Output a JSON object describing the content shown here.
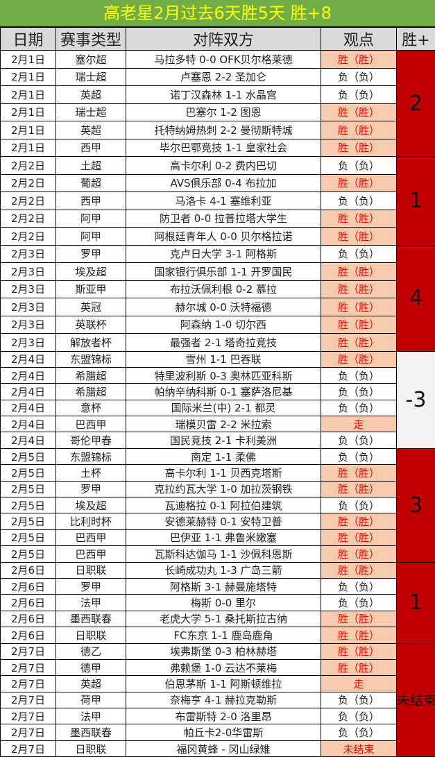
{
  "title": "高老星2月过去6天胜5天  胜+8",
  "headers": [
    "日期",
    "赛事类型",
    "对阵双方",
    "观点",
    "胜+"
  ],
  "colors": {
    "title_bg": "#70ad47",
    "title_text": "#ffff00",
    "header_bg": "#d9d9d9",
    "win_bg": "#f8cbad",
    "win_text": "#ff0000",
    "side_bg": "#c00000",
    "side_neg_bg": "#f2f2f2"
  },
  "groups": [
    {
      "score": "2",
      "rows": [
        {
          "date": "2月1日",
          "league": "塞尔超",
          "match": "马拉多特 0-0 OFK贝尔格莱德",
          "pick": "胜（胜）",
          "hit": true
        },
        {
          "date": "2月1日",
          "league": "瑞士超",
          "match": "卢塞恩 2-2 圣加仑",
          "pick": "负（负）",
          "hit": false
        },
        {
          "date": "2月1日",
          "league": "英超",
          "match": "诺丁汉森林 1-1 水晶宫",
          "pick": "负（负）",
          "hit": false
        },
        {
          "date": "2月1日",
          "league": "瑞士超",
          "match": "巴塞尔 1-2 图恩",
          "pick": "胜（胜）",
          "hit": true
        },
        {
          "date": "2月1日",
          "league": "英超",
          "match": "托特纳姆热刺 2-2 曼彻斯特城",
          "pick": "胜（胜）",
          "hit": true
        },
        {
          "date": "2月1日",
          "league": "西甲",
          "match": "毕尔巴鄂竞技 1-1 皇家社会",
          "pick": "胜（胜）",
          "hit": true
        }
      ]
    },
    {
      "score": "1",
      "rows": [
        {
          "date": "2月2日",
          "league": "土超",
          "match": "高卡尔利 0-2 费内巴切",
          "pick": "负（负）",
          "hit": false
        },
        {
          "date": "2月2日",
          "league": "葡超",
          "match": "AVS俱乐部 0-4 布拉加",
          "pick": "胜（胜）",
          "hit": true
        },
        {
          "date": "2月2日",
          "league": "西甲",
          "match": "马洛卡 4-1 塞维利亚",
          "pick": "负（负）",
          "hit": false
        },
        {
          "date": "2月2日",
          "league": "阿甲",
          "match": "防卫者 0-0 拉普拉塔大学生",
          "pick": "胜（胜）",
          "hit": true
        },
        {
          "date": "2月2日",
          "league": "阿甲",
          "match": "阿根廷青年人 0-0 贝尔格拉诺",
          "pick": "胜（胜）",
          "hit": true
        }
      ]
    },
    {
      "score": "4",
      "rows": [
        {
          "date": "2月3日",
          "league": "罗甲",
          "match": "克卢日大学 3-1 阿格斯",
          "pick": "负（负）",
          "hit": false
        },
        {
          "date": "2月3日",
          "league": "埃及超",
          "match": "国家银行俱乐部 1-1 开罗国民",
          "pick": "胜（胜）",
          "hit": true
        },
        {
          "date": "2月3日",
          "league": "斯亚甲",
          "match": "布拉沃佩利根 0-2 慕拉",
          "pick": "胜（胜）",
          "hit": true
        },
        {
          "date": "2月3日",
          "league": "英冠",
          "match": "赫尔城 0-0 沃特福德",
          "pick": "胜（胜）",
          "hit": true
        },
        {
          "date": "2月3日",
          "league": "英联杯",
          "match": "阿森纳 1-0 切尔西",
          "pick": "胜（胜）",
          "hit": true
        },
        {
          "date": "2月3日",
          "league": "解放者杯",
          "match": "最强者 2-1 塔奇拉竞技",
          "pick": "胜（胜）",
          "hit": true
        }
      ]
    },
    {
      "score": "-3",
      "rows": [
        {
          "date": "2月4日",
          "league": "东盟锦标",
          "match": "雪州 1-1 巴吞联",
          "pick": "胜（胜）",
          "hit": true
        },
        {
          "date": "2月4日",
          "league": "希腊超",
          "match": "特里波利斯 0-3 奥林匹亚科斯",
          "pick": "负（负）",
          "hit": false
        },
        {
          "date": "2月4日",
          "league": "希腊超",
          "match": "帕纳辛纳科斯 0-1 塞萨洛尼基",
          "pick": "负（负）",
          "hit": false
        },
        {
          "date": "2月4日",
          "league": "意杯",
          "match": "国际米兰(中) 2-1 都灵",
          "pick": "负（负）",
          "hit": false
        },
        {
          "date": "2月4日",
          "league": "巴西甲",
          "match": "瑞模贝雷 2-2 米拉索",
          "pick": "走",
          "hit": true
        },
        {
          "date": "2月4日",
          "league": "哥伦甲春",
          "match": "国民竞技 2-1 卡利美洲",
          "pick": "负（负）",
          "hit": false
        }
      ]
    },
    {
      "score": "3",
      "rows": [
        {
          "date": "2月5日",
          "league": "东盟锦标",
          "match": "南定 1-1 柔佛",
          "pick": "负（负）",
          "hit": false
        },
        {
          "date": "2月5日",
          "league": "土杯",
          "match": "高卡尔利 1-1 贝西克塔斯",
          "pick": "胜（胜）",
          "hit": true
        },
        {
          "date": "2月5日",
          "league": "罗甲",
          "match": "克拉约瓦大学 1-0 加拉茨钢铁",
          "pick": "胜（胜）",
          "hit": true
        },
        {
          "date": "2月5日",
          "league": "埃及超",
          "match": "瓦迪格拉 0-1 阿拉伯建筑",
          "pick": "负（负）",
          "hit": false
        },
        {
          "date": "2月5日",
          "league": "比利时杯",
          "match": "安德莱赫特 0-1 安特卫普",
          "pick": "胜（胜）",
          "hit": true
        },
        {
          "date": "2月5日",
          "league": "巴西甲",
          "match": "巴伊亚 1-1 弗鲁米嫩塞",
          "pick": "胜（胜）",
          "hit": true
        },
        {
          "date": "2月5日",
          "league": "巴西甲",
          "match": "瓦斯科达伽马 1-1 沙佩科恩斯",
          "pick": "胜（胜）",
          "hit": true
        }
      ]
    },
    {
      "score": "1",
      "rows": [
        {
          "date": "2月6日",
          "league": "日职联",
          "match": "长崎成功丸 1-3 广岛三箭",
          "pick": "胜（胜）",
          "hit": true
        },
        {
          "date": "2月6日",
          "league": "罗甲",
          "match": "阿格斯 3-1 赫曼施塔特",
          "pick": "负（负）",
          "hit": false
        },
        {
          "date": "2月6日",
          "league": "法甲",
          "match": "梅斯 0-0 里尔",
          "pick": "负（负）",
          "hit": false
        },
        {
          "date": "2月6日",
          "league": "墨西联春",
          "match": "老虎大学 5-1 桑托斯拉古纳",
          "pick": "胜（胜）",
          "hit": true
        },
        {
          "date": "2月6日",
          "league": "日职联",
          "match": "FC东京 1-1 鹿岛鹿角",
          "pick": "胜（胜）",
          "hit": true
        }
      ]
    },
    {
      "score": "未结束",
      "rows": [
        {
          "date": "2月7日",
          "league": "德乙",
          "match": "埃弗斯堡 0-3 柏林赫塔",
          "pick": "胜（胜）",
          "hit": true
        },
        {
          "date": "2月7日",
          "league": "德甲",
          "match": "弗赖堡 1-0 云达不莱梅",
          "pick": "胜（胜）",
          "hit": true
        },
        {
          "date": "2月7日",
          "league": "英超",
          "match": "伯恩茅斯 1-1 阿斯顿维拉",
          "pick": "走",
          "hit": true
        },
        {
          "date": "2月7日",
          "league": "荷甲",
          "match": "奈梅亨 4-1 赫拉克勒斯",
          "pick": "负（负）",
          "hit": false
        },
        {
          "date": "2月7日",
          "league": "法甲",
          "match": "布雷斯特 2-0 洛里昂",
          "pick": "负（负）",
          "hit": false
        },
        {
          "date": "2月7日",
          "league": "墨西联春",
          "match": "帕丘卡2-0华雷斯",
          "pick": "负（负）",
          "hit": false
        },
        {
          "date": "2月7日",
          "league": "日职联",
          "match": "福冈黄蜂 - 冈山绿雉",
          "pick": "未结束",
          "hit": true
        }
      ]
    }
  ]
}
